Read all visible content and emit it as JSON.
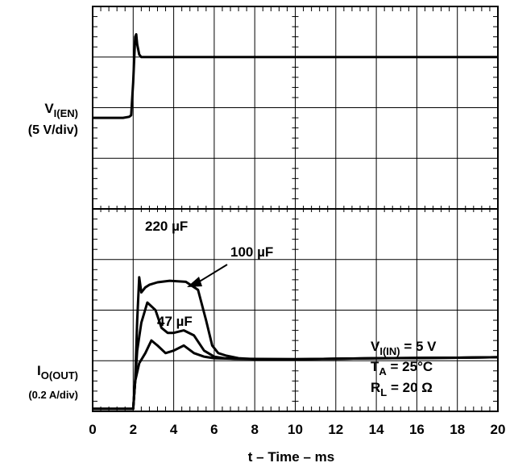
{
  "chart_data": {
    "type": "line",
    "title": "",
    "xlabel": "t – Time – ms",
    "x_ticks": [
      "0",
      "2",
      "4",
      "6",
      "8",
      "10",
      "12",
      "14",
      "16",
      "18",
      "20"
    ],
    "xlim": [
      0,
      20
    ],
    "grid": true,
    "grid_divisions": {
      "x": 10,
      "y": 8
    },
    "panels": [
      {
        "name": "enable",
        "ylabel": {
          "main": "V",
          "sub": "I(EN)",
          "scale": "(5 V/div)"
        },
        "ylim_div": [
          0,
          4
        ]
      },
      {
        "name": "output current",
        "ylabel": {
          "main": "I",
          "sub": "O(OUT)",
          "scale": "(0.2 A/div)"
        },
        "ylim_div": [
          0,
          4
        ]
      }
    ],
    "series": [
      {
        "panel": "enable",
        "x": [
          0,
          1.5,
          1.8,
          1.9,
          2.0,
          2.1,
          2.15,
          2.2,
          2.3,
          2.4,
          3,
          6,
          10,
          15,
          20
        ],
        "y": [
          1.8,
          1.8,
          1.82,
          1.85,
          2.5,
          3.4,
          3.45,
          3.25,
          3.05,
          3.0,
          3.0,
          3.0,
          3.0,
          3.0,
          3.0
        ]
      },
      {
        "name": "220 µF",
        "panel": "output current",
        "x": [
          0,
          2.0,
          2.1,
          2.2,
          2.3,
          2.4,
          2.6,
          2.8,
          3.2,
          3.8,
          4.6,
          5.2,
          5.6,
          5.9,
          6.2,
          6.6,
          7.2,
          8,
          10,
          14,
          18,
          20
        ],
        "y": [
          0.05,
          0.05,
          0.6,
          1.8,
          2.65,
          2.35,
          2.45,
          2.5,
          2.55,
          2.58,
          2.56,
          2.4,
          1.8,
          1.3,
          1.15,
          1.1,
          1.05,
          1.03,
          1.03,
          1.05,
          1.06,
          1.07
        ]
      },
      {
        "name": "100 µF",
        "panel": "output current",
        "x": [
          0,
          2.0,
          2.1,
          2.2,
          2.4,
          2.7,
          3.1,
          3.4,
          3.7,
          4.0,
          4.5,
          5.0,
          5.5,
          6.0,
          6.5,
          7,
          8,
          10,
          14,
          18,
          20
        ],
        "y": [
          0.05,
          0.05,
          0.6,
          1.2,
          1.75,
          2.15,
          2.0,
          1.65,
          1.55,
          1.55,
          1.6,
          1.5,
          1.2,
          1.08,
          1.05,
          1.04,
          1.03,
          1.03,
          1.05,
          1.06,
          1.07
        ]
      },
      {
        "name": "47 µF",
        "panel": "output current",
        "x": [
          0,
          2.0,
          2.1,
          2.3,
          2.6,
          2.9,
          3.2,
          3.6,
          4.0,
          4.5,
          5.0,
          5.5,
          6,
          7,
          10,
          14,
          18,
          20
        ],
        "y": [
          0.05,
          0.05,
          0.6,
          0.95,
          1.15,
          1.4,
          1.3,
          1.15,
          1.2,
          1.3,
          1.15,
          1.08,
          1.05,
          1.04,
          1.03,
          1.05,
          1.06,
          1.07
        ]
      }
    ],
    "annotations": [
      {
        "text": "220 µF",
        "color": "#000000"
      },
      {
        "text": "100 µF",
        "color": "#000000",
        "arrow": true
      },
      {
        "text": "47 µF",
        "color": "#000000"
      }
    ],
    "conditions": [
      {
        "main": "V",
        "sub": "I(IN)",
        "rest": " = 5 V"
      },
      {
        "main": "T",
        "sub": "A",
        "rest": " = 25°C"
      },
      {
        "main": "R",
        "sub": "L",
        "rest": " = 20 Ω"
      }
    ],
    "colors": {
      "trace": "#000000",
      "grid": "#000000",
      "background": "#ffffff"
    }
  }
}
